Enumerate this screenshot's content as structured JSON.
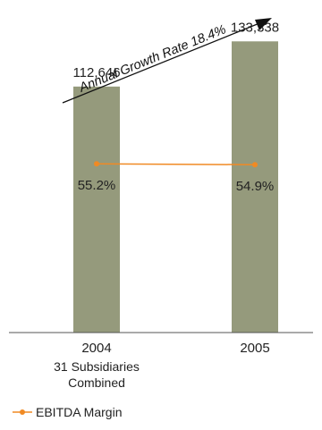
{
  "chart_data": {
    "type": "bar",
    "categories": [
      "2004",
      "2005"
    ],
    "category_sublabels": [
      "31 Subsidiaries",
      "Combined",
      ""
    ],
    "values": [
      112646,
      133338
    ],
    "value_labels": [
      "112,646",
      "133,338"
    ],
    "ylim": [
      0,
      140000
    ],
    "bar_color": "#959a7c",
    "line_series": {
      "name": "EBITDA Margin",
      "values": [
        55.2,
        54.9
      ],
      "value_labels": [
        "55.2%",
        "54.9%"
      ],
      "color": "#f08a24",
      "ylim": [
        0,
        100
      ]
    },
    "annotation": "Annual Growth Rate 18.4%",
    "legend_placement": "bottom-left",
    "grid": false
  }
}
